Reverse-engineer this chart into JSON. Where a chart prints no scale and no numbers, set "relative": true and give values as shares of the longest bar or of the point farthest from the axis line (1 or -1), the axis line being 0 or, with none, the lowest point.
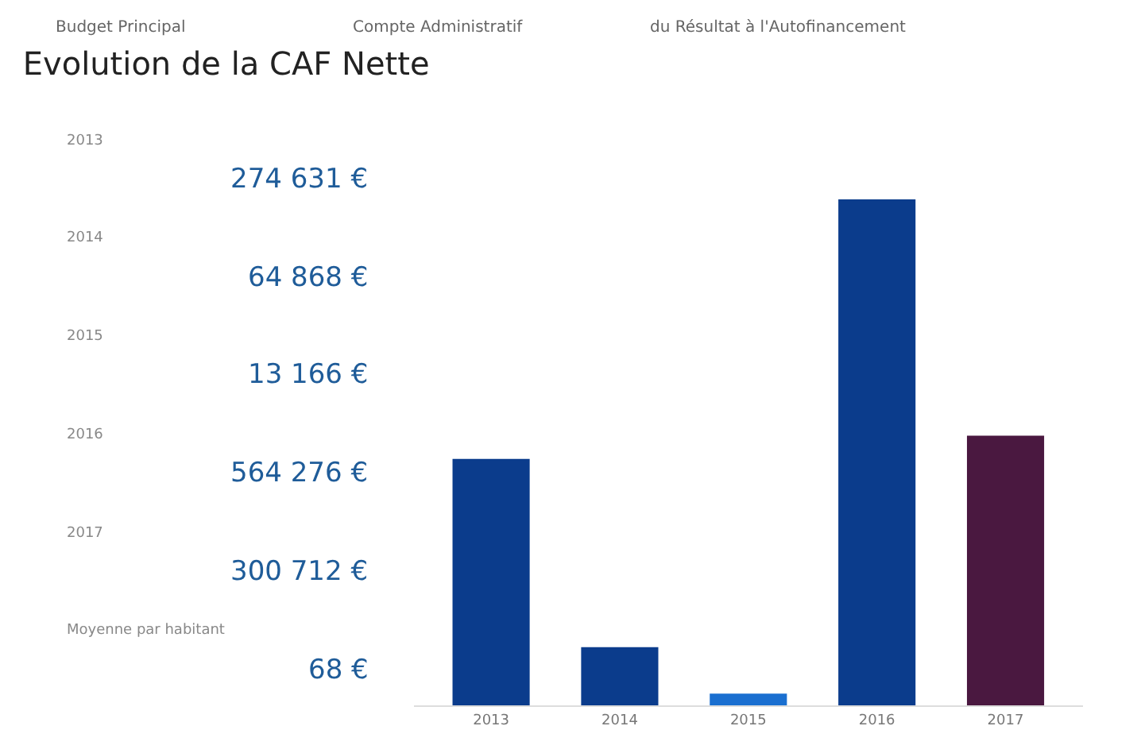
{
  "chart_data": {
    "type": "bar",
    "title": "Evolution de la CAF Nette",
    "categories": [
      "2013",
      "2014",
      "2015",
      "2016",
      "2017"
    ],
    "relative": true,
    "values": [
      0.487,
      0.115,
      0.023,
      1,
      0.533
    ],
    "colors": [
      "#0b3c8c",
      "#0b3c8c",
      "#1a6fd0",
      "#0b3c8c",
      "#4a1840"
    ],
    "legend": false,
    "annotations": [
      "Budget Principal",
      "Compte Administratif",
      "du Résultat à l'Autofinancement",
      "2013",
      "274 631 €",
      "2014",
      "64 868 €",
      "2015",
      "13 166 €",
      "2016",
      "564 276 €",
      "2017",
      "300 712 €",
      "Moyenne par habitant",
      "68 €"
    ]
  }
}
